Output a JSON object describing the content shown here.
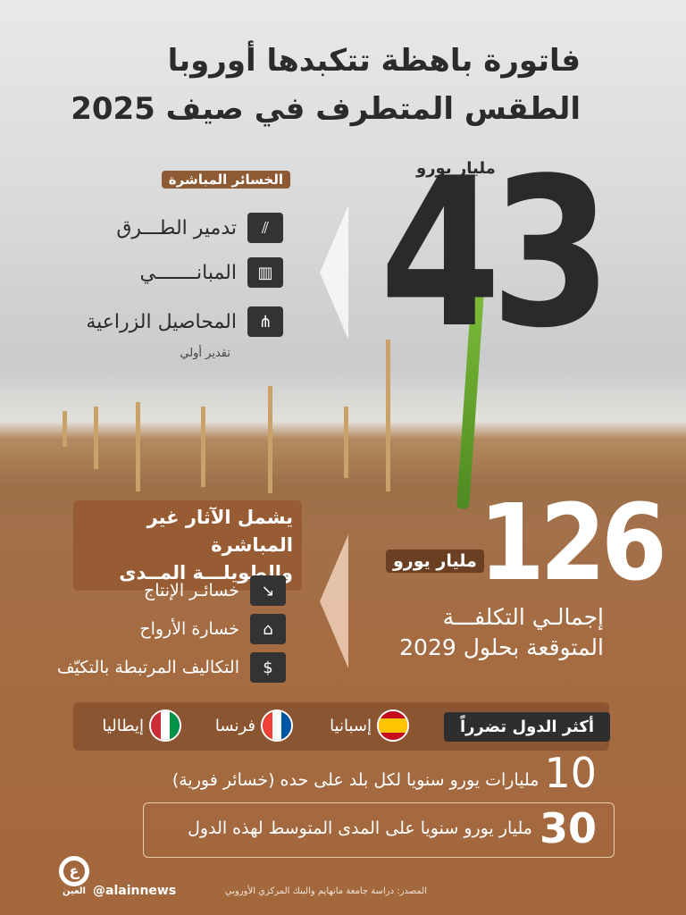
{
  "title": {
    "line1": "فاتورة باهظة تتكبدها أوروبا",
    "line2": "الطقس المتطرف في صيف 2025"
  },
  "direct": {
    "amount": "43",
    "unit": "مليار يورو",
    "label": "الخسائر المباشرة",
    "items": [
      {
        "label": "تدمير الطـــرق",
        "icon": "road-icon"
      },
      {
        "label": "المبانـــــــي",
        "icon": "buildings-icon"
      },
      {
        "label": "المحاصيل الزراعية",
        "icon": "wheat-icon"
      }
    ],
    "note": "تقدير أولي"
  },
  "total": {
    "amount": "126",
    "unit": "مليار يورو",
    "line1": "إجمالـي التكلفـــة",
    "line2": "المتوقعة بحلول 2029"
  },
  "indirect": {
    "label_line1": "يشمل الآثار غير المباشرة",
    "label_line2": "والطويلـــة المــدى",
    "items": [
      {
        "label": "خسائـر الإنتاج",
        "icon": "declining-chart-icon"
      },
      {
        "label": "خسارة الأرواح",
        "icon": "tombstone-icon"
      },
      {
        "label": "التكاليف المرتبطة بالتكيّف",
        "icon": "coins-icon"
      }
    ]
  },
  "countries": {
    "label": "أكثر الدول تضرراً",
    "items": [
      {
        "name": "إسبانيا",
        "icon": "spain-flag-icon"
      },
      {
        "name": "فرنسا",
        "icon": "france-flag-icon"
      },
      {
        "name": "إيطاليا",
        "icon": "italy-flag-icon"
      }
    ]
  },
  "stat10": {
    "number": "10",
    "text": "مليارات يورو سنويا لكل بلد على حده (خسائر فورية)"
  },
  "stat30": {
    "number": "30",
    "text": "مليار يورو سنويا على المدى المتوسط لهذه الدول"
  },
  "footer": {
    "source": "المصدر: دراسة جامعة مانهايم والبنك المركزي الأوروبي",
    "handle": "@alainnews",
    "logo_text": "العين"
  },
  "colors": {
    "brown": "#8d5a34",
    "dark": "#2b2b2b",
    "background_bottom": "#a3673c"
  }
}
